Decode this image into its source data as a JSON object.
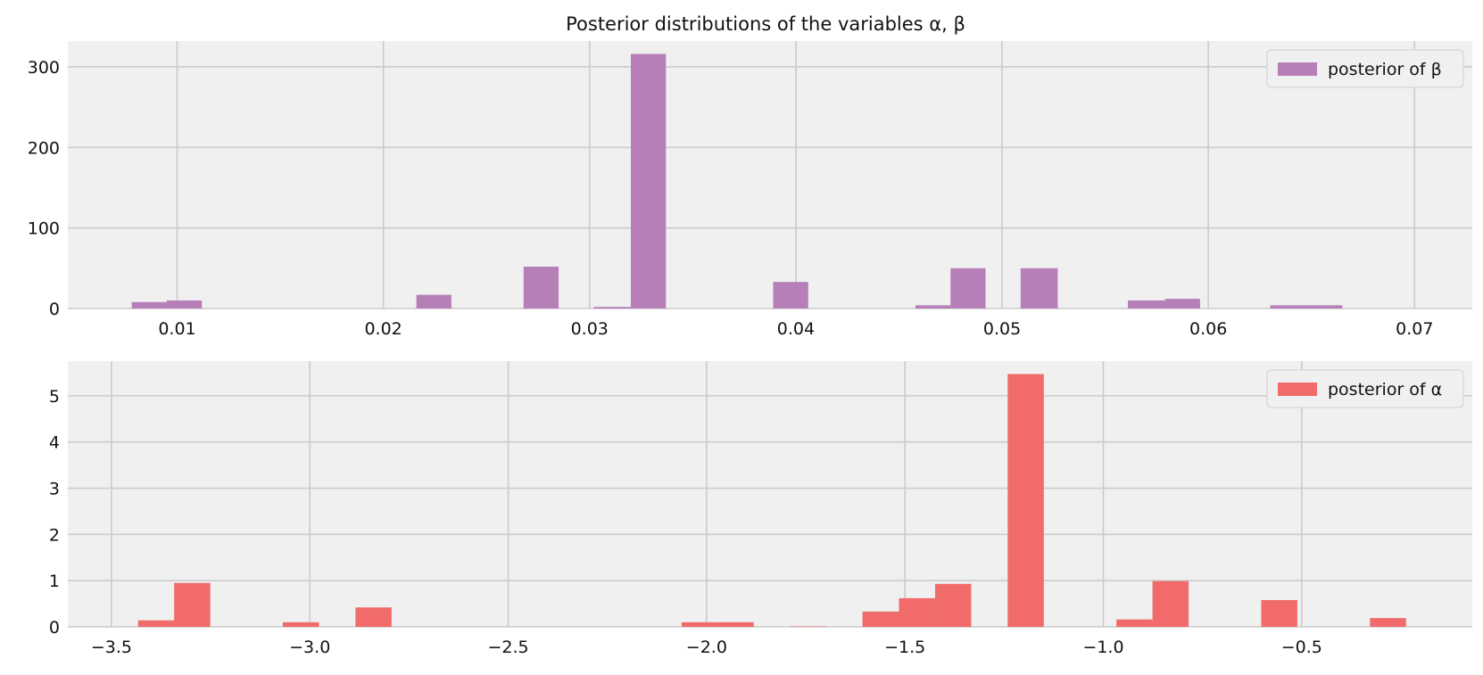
{
  "title": "Posterior distributions of the variables α, β",
  "chart_data": [
    {
      "type": "bar",
      "subtype": "histogram",
      "legend": "top-right",
      "grid": true,
      "series": [
        {
          "name": "posterior of β",
          "color": "#b77fb8",
          "bin_edges": [
            0.0078,
            0.0095,
            0.0112,
            0.0129,
            0.0147,
            0.0164,
            0.0181,
            0.0198,
            0.0216,
            0.0233,
            0.025,
            0.0268,
            0.0285,
            0.0302,
            0.032,
            0.0337,
            0.0354,
            0.0371,
            0.0389,
            0.0406,
            0.0423,
            0.044,
            0.0458,
            0.0475,
            0.0492,
            0.0509,
            0.0527,
            0.0544,
            0.0561,
            0.0579,
            0.0596,
            0.0613,
            0.063,
            0.0648,
            0.0665,
            0.0682
          ],
          "counts": [
            8,
            10,
            0,
            0,
            0,
            0,
            0,
            0,
            17,
            0,
            0,
            52,
            0,
            2,
            316,
            0,
            0,
            0,
            33,
            0,
            0,
            0,
            4,
            50,
            0,
            50,
            0,
            0,
            10,
            12,
            0,
            0,
            4,
            4,
            0,
            6
          ]
        }
      ],
      "x_ticks": [
        0.01,
        0.02,
        0.03,
        0.04,
        0.05,
        0.06,
        0.07
      ],
      "x_tick_labels": [
        "0.01",
        "0.02",
        "0.03",
        "0.04",
        "0.05",
        "0.06",
        "0.07"
      ],
      "y_ticks": [
        0,
        100,
        200,
        300
      ],
      "y_tick_labels": [
        "0",
        "100",
        "200",
        "300"
      ],
      "xlim": [
        0.0047,
        0.0728
      ],
      "ylim": [
        0,
        332
      ]
    },
    {
      "type": "bar",
      "subtype": "histogram",
      "legend": "top-right",
      "grid": true,
      "series": [
        {
          "name": "posterior of α",
          "color": "#f06b69",
          "bin_edges": [
            -3.433,
            -3.342,
            -3.251,
            -3.159,
            -3.068,
            -2.977,
            -2.885,
            -2.794,
            -2.703,
            -2.611,
            -2.52,
            -2.429,
            -2.337,
            -2.246,
            -2.155,
            -2.063,
            -1.972,
            -1.881,
            -1.789,
            -1.698,
            -1.607,
            -1.515,
            -1.424,
            -1.333,
            -1.241,
            -1.15,
            -1.059,
            -0.967,
            -0.876,
            -0.785,
            -0.693,
            -0.602,
            -0.511,
            -0.419,
            -0.328,
            -0.237
          ],
          "counts": [
            0.14,
            0.95,
            0,
            0,
            0.1,
            0,
            0.42,
            0,
            0,
            0,
            0,
            0,
            0,
            0,
            0,
            0.1,
            0.1,
            0,
            0.01,
            0,
            0.33,
            0.62,
            0.93,
            0,
            5.47,
            0,
            0,
            0.16,
            0.99,
            0,
            0,
            0.58,
            0,
            0,
            0.19
          ]
        }
      ],
      "x_ticks": [
        -3.5,
        -3.0,
        -2.5,
        -2.0,
        -1.5,
        -1.0,
        -0.5
      ],
      "x_tick_labels": [
        "−3.5",
        "−3.0",
        "−2.5",
        "−2.0",
        "−1.5",
        "−1.0",
        "−0.5"
      ],
      "y_ticks": [
        0,
        1,
        2,
        3,
        4,
        5
      ],
      "y_tick_labels": [
        "0",
        "1",
        "2",
        "3",
        "4",
        "5"
      ],
      "xlim": [
        -3.61,
        -0.07
      ],
      "ylim": [
        0,
        5.75
      ]
    }
  ]
}
